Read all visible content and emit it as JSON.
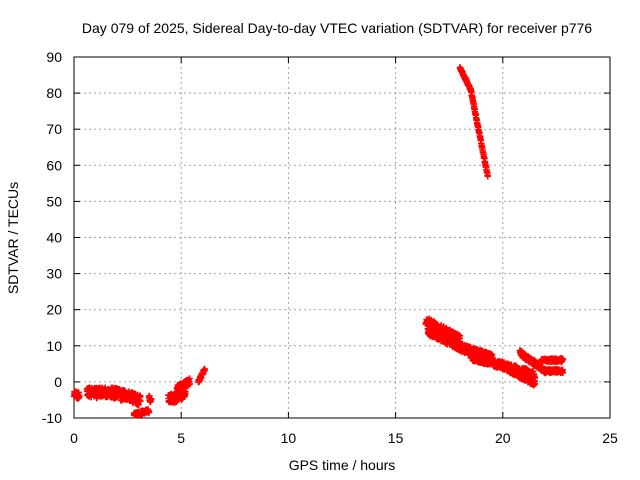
{
  "chart_data": {
    "type": "scatter",
    "title": "Day 079 of 2025, Sidereal Day-to-day VTEC variation (SDTVAR) for receiver p776",
    "xlabel": "GPS time / hours",
    "ylabel": "SDTVAR / TECUs",
    "xlim": [
      0,
      25
    ],
    "ylim": [
      -10,
      90
    ],
    "xticks": [
      0,
      5,
      10,
      15,
      20,
      25
    ],
    "yticks": [
      -10,
      0,
      10,
      20,
      30,
      40,
      50,
      60,
      70,
      80,
      90
    ],
    "grid": true,
    "marker": "+",
    "series": [
      {
        "name": "SDTVAR",
        "color": "#ff0000",
        "segments": [
          {
            "x0": 0.0,
            "x1": 0.25,
            "y0": -3,
            "y1": -4,
            "spread": 2
          },
          {
            "x0": 0.6,
            "x1": 2.0,
            "y0": -3,
            "y1": -3,
            "spread": 3
          },
          {
            "x0": 1.8,
            "x1": 3.1,
            "y0": -3,
            "y1": -5,
            "spread": 3
          },
          {
            "x0": 2.8,
            "x1": 3.5,
            "y0": -9,
            "y1": -8,
            "spread": 1
          },
          {
            "x0": 3.5,
            "x1": 3.6,
            "y0": -4,
            "y1": -5,
            "spread": 2
          },
          {
            "x0": 4.4,
            "x1": 5.2,
            "y0": -5,
            "y1": -3,
            "spread": 3
          },
          {
            "x0": 4.8,
            "x1": 5.4,
            "y0": -2,
            "y1": 0,
            "spread": 2
          },
          {
            "x0": 5.8,
            "x1": 6.1,
            "y0": 0,
            "y1": 3.5,
            "spread": 1
          },
          {
            "x0": 18.0,
            "x1": 18.5,
            "y0": 87,
            "y1": 81,
            "spread": 0.6
          },
          {
            "x0": 18.5,
            "x1": 19.3,
            "y0": 81,
            "y1": 57,
            "spread": 0.6
          },
          {
            "x0": 16.4,
            "x1": 18.0,
            "y0": 17,
            "y1": 12,
            "spread": 2
          },
          {
            "x0": 16.5,
            "x1": 18.5,
            "y0": 14,
            "y1": 8,
            "spread": 2
          },
          {
            "x0": 18.0,
            "x1": 19.5,
            "y0": 10,
            "y1": 7,
            "spread": 1.5
          },
          {
            "x0": 18.5,
            "x1": 21.5,
            "y0": 7,
            "y1": 2,
            "spread": 2
          },
          {
            "x0": 19.8,
            "x1": 21.5,
            "y0": 5,
            "y1": -0.5,
            "spread": 1.5
          },
          {
            "x0": 20.8,
            "x1": 22.0,
            "y0": 8,
            "y1": 3,
            "spread": 1.5
          },
          {
            "x0": 21.8,
            "x1": 22.8,
            "y0": 3,
            "y1": 3,
            "spread": 1
          },
          {
            "x0": 21.8,
            "x1": 22.8,
            "y0": 6,
            "y1": 6,
            "spread": 1
          }
        ]
      }
    ]
  }
}
